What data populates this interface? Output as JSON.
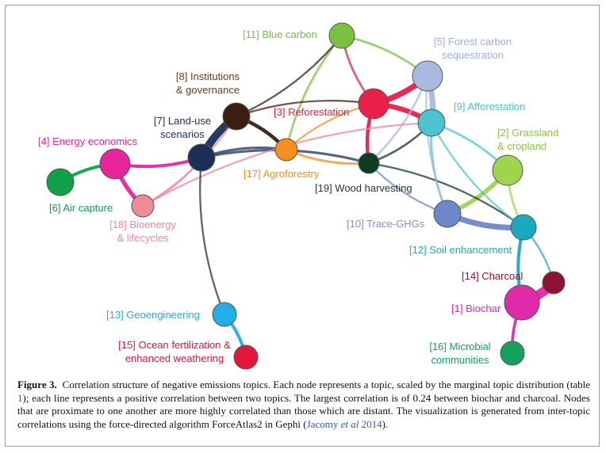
{
  "figure": {
    "caption_label": "Figure 3.",
    "caption_part1": "Correlation structure of negative emissions topics. Each node represents a topic, scaled by the marginal topic distribution (table ",
    "caption_ref_table": "1",
    "caption_part2": "); each line represents a positive correlation between two topics. The largest correlation is of 0.24 between biochar and charcoal. Nodes that are proximate to one another are more highly correlated than those which are distant. The visualization is generated from inter-topic correlations using the force-directed algorithm ForceAtlas2 in Gephi (",
    "caption_ref_author": "Jacomy ",
    "caption_ref_etal": "et al",
    "caption_ref_year": " 2014",
    "caption_part3": ")."
  },
  "nodes": [
    {
      "id": "n11",
      "label_lines": [
        "[11] Blue carbon"
      ],
      "color": "#7ac142"
    },
    {
      "id": "n5",
      "label_lines": [
        "[5] Forest carbon",
        "sequestration"
      ],
      "color": "#a9b9e0"
    },
    {
      "id": "n8",
      "label_lines": [
        "[8] Institutions",
        "& governance"
      ],
      "color": "#3b1e12"
    },
    {
      "id": "n3",
      "label_lines": [
        "[3] Reforestation"
      ],
      "color": "#e8204a"
    },
    {
      "id": "n9",
      "label_lines": [
        "[9] Afforestation"
      ],
      "color": "#4bc3d0"
    },
    {
      "id": "n4",
      "label_lines": [
        "[4] Energy economics"
      ],
      "color": "#e6259c"
    },
    {
      "id": "n7",
      "label_lines": [
        "[7] Land-use",
        "scenarios"
      ],
      "color": "#1b2f57"
    },
    {
      "id": "n2",
      "label_lines": [
        "[2] Grassland",
        "& cropland"
      ],
      "color": "#9fd44e"
    },
    {
      "id": "n17",
      "label_lines": [
        "[17] Agroforestry"
      ],
      "color": "#f5901e"
    },
    {
      "id": "n19",
      "label_lines": [
        "[19] Wood harvesting"
      ],
      "color": "#0f3b24"
    },
    {
      "id": "n6",
      "label_lines": [
        "[6] Air capture"
      ],
      "color": "#11a04a"
    },
    {
      "id": "n18",
      "label_lines": [
        "[18] Bioenergy",
        "& lifecycles"
      ],
      "color": "#f08a94"
    },
    {
      "id": "n10",
      "label_lines": [
        "[10] Trace-GHGs"
      ],
      "color": "#6f86c9"
    },
    {
      "id": "n12",
      "label_lines": [
        "[12] Soil enhancement"
      ],
      "color": "#1ba9c1"
    },
    {
      "id": "n14",
      "label_lines": [
        "[14] Charcoal"
      ],
      "color": "#8e1235"
    },
    {
      "id": "n1",
      "label_lines": [
        "[1] Biochar"
      ],
      "color": "#e02aa8"
    },
    {
      "id": "n13",
      "label_lines": [
        "[13] Geoengineering"
      ],
      "color": "#22aee6"
    },
    {
      "id": "n15",
      "label_lines": [
        "[15] Ocean fertilization &",
        "enhanced weathering"
      ],
      "color": "#e2173e"
    },
    {
      "id": "n16",
      "label_lines": [
        "[16] Microbial",
        "communities"
      ],
      "color": "#16a060"
    }
  ],
  "edges": [
    {
      "from": "n1",
      "to": "n14",
      "weight": 0.24
    },
    {
      "from": "n7",
      "to": "n8",
      "weight": 0.2
    },
    {
      "from": "n3",
      "to": "n5",
      "weight": 0.14
    },
    {
      "from": "n5",
      "to": "n9",
      "weight": 0.14
    },
    {
      "from": "n10",
      "to": "n12",
      "weight": 0.14
    },
    {
      "from": "n3",
      "to": "n9",
      "weight": 0.12
    },
    {
      "from": "n4",
      "to": "n18",
      "weight": 0.1
    },
    {
      "from": "n2",
      "to": "n10",
      "weight": 0.1
    },
    {
      "from": "n3",
      "to": "n19",
      "weight": 0.08
    },
    {
      "from": "n8",
      "to": "n17",
      "weight": 0.08
    },
    {
      "from": "n4",
      "to": "n7",
      "weight": 0.07
    },
    {
      "from": "n6",
      "to": "n4",
      "weight": 0.07
    },
    {
      "from": "n12",
      "to": "n1",
      "weight": 0.07
    },
    {
      "from": "n13",
      "to": "n15",
      "weight": 0.07
    },
    {
      "from": "n1",
      "to": "n16",
      "weight": 0.06
    },
    {
      "from": "n7",
      "to": "n17",
      "weight": 0.05
    },
    {
      "from": "n17",
      "to": "n19",
      "weight": 0.05
    },
    {
      "from": "n7",
      "to": "n19",
      "weight": 0.05
    },
    {
      "from": "n19",
      "to": "n9",
      "weight": 0.04
    },
    {
      "from": "n3",
      "to": "n11",
      "weight": 0.04
    },
    {
      "from": "n11",
      "to": "n17",
      "weight": 0.04
    },
    {
      "from": "n11",
      "to": "n5",
      "weight": 0.04
    },
    {
      "from": "n2",
      "to": "n12",
      "weight": 0.04
    },
    {
      "from": "n9",
      "to": "n2",
      "weight": 0.04
    },
    {
      "from": "n9",
      "to": "n10",
      "weight": 0.04
    },
    {
      "from": "n5",
      "to": "n19",
      "weight": 0.04
    },
    {
      "from": "n18",
      "to": "n7",
      "weight": 0.03
    },
    {
      "from": "n18",
      "to": "n9",
      "weight": 0.03
    },
    {
      "from": "n8",
      "to": "n11",
      "weight": 0.03
    },
    {
      "from": "n8",
      "to": "n3",
      "weight": 0.03
    },
    {
      "from": "n7",
      "to": "n13",
      "weight": 0.03
    },
    {
      "from": "n19",
      "to": "n12",
      "weight": 0.03
    },
    {
      "from": "n5",
      "to": "n10",
      "weight": 0.03
    },
    {
      "from": "n10",
      "to": "n19",
      "weight": 0.03
    },
    {
      "from": "n9",
      "to": "n12",
      "weight": 0.03
    },
    {
      "from": "n17",
      "to": "n3",
      "weight": 0.03
    },
    {
      "from": "n18",
      "to": "n8",
      "weight": 0.03
    },
    {
      "from": "n12",
      "to": "n14",
      "weight": 0.03
    }
  ]
}
